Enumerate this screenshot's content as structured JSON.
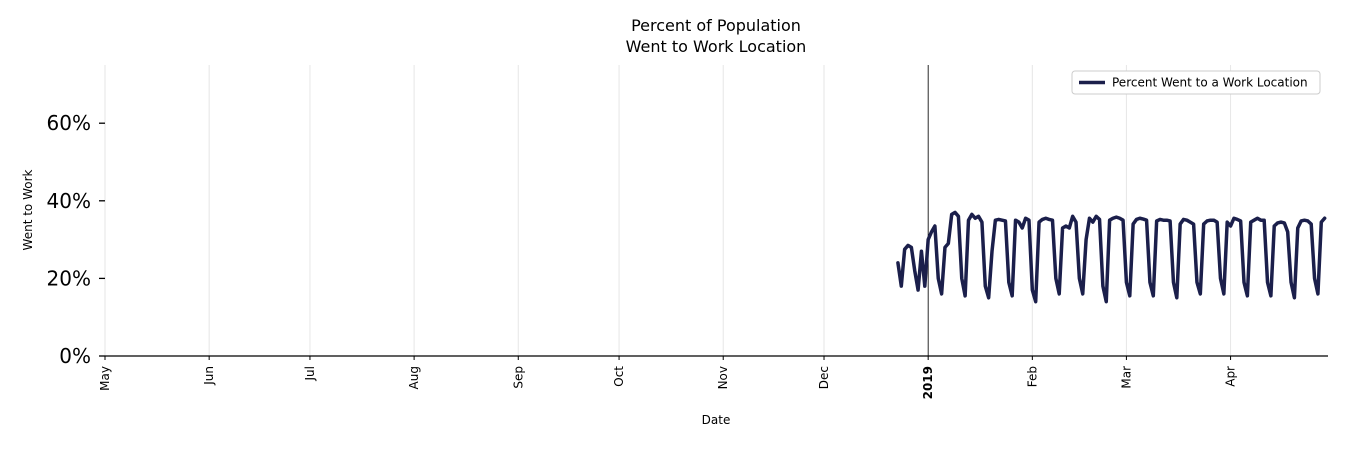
{
  "chart_data": {
    "type": "line",
    "title_lines": [
      "Percent of Population",
      "Went to Work Location"
    ],
    "xlabel": "Date",
    "ylabel": "Went to Work",
    "xlim": [
      "2018-05-01",
      "2019-04-30"
    ],
    "ylim": [
      0,
      0.75
    ],
    "y_ticks": [
      0,
      0.2,
      0.4,
      0.6
    ],
    "y_tick_labels": [
      "0%",
      "20%",
      "40%",
      "60%"
    ],
    "x_ticks": [
      {
        "date": "2018-05-01",
        "label": "May",
        "bold": false
      },
      {
        "date": "2018-06-01",
        "label": "Jun",
        "bold": false
      },
      {
        "date": "2018-07-01",
        "label": "Jul",
        "bold": false
      },
      {
        "date": "2018-08-01",
        "label": "Aug",
        "bold": false
      },
      {
        "date": "2018-09-01",
        "label": "Sep",
        "bold": false
      },
      {
        "date": "2018-10-01",
        "label": "Oct",
        "bold": false
      },
      {
        "date": "2018-11-01",
        "label": "Nov",
        "bold": false
      },
      {
        "date": "2018-12-01",
        "label": "Dec",
        "bold": false
      },
      {
        "date": "2019-01-01",
        "label": "2019",
        "bold": true
      },
      {
        "date": "2019-02-01",
        "label": "Feb",
        "bold": false
      },
      {
        "date": "2019-03-01",
        "label": "Mar",
        "bold": false
      },
      {
        "date": "2019-04-01",
        "label": "Apr",
        "bold": false
      }
    ],
    "vertical_marker": "2019-01-01",
    "grid": "vertical",
    "legend_position": "top-right",
    "colors": {
      "series": "#1b1f4b",
      "grid": "#e6e6e6",
      "axis": "#000000"
    },
    "series": [
      {
        "name": "Percent Went to a Work Location",
        "points": [
          [
            "2018-12-23",
            0.24
          ],
          [
            "2018-12-24",
            0.18
          ],
          [
            "2018-12-25",
            0.275
          ],
          [
            "2018-12-26",
            0.285
          ],
          [
            "2018-12-27",
            0.28
          ],
          [
            "2018-12-28",
            0.22
          ],
          [
            "2018-12-29",
            0.17
          ],
          [
            "2018-12-30",
            0.27
          ],
          [
            "2018-12-31",
            0.18
          ],
          [
            "2019-01-01",
            0.3
          ],
          [
            "2019-01-02",
            0.32
          ],
          [
            "2019-01-03",
            0.335
          ],
          [
            "2019-01-04",
            0.2
          ],
          [
            "2019-01-05",
            0.16
          ],
          [
            "2019-01-06",
            0.28
          ],
          [
            "2019-01-07",
            0.29
          ],
          [
            "2019-01-08",
            0.365
          ],
          [
            "2019-01-09",
            0.37
          ],
          [
            "2019-01-10",
            0.36
          ],
          [
            "2019-01-11",
            0.2
          ],
          [
            "2019-01-12",
            0.155
          ],
          [
            "2019-01-13",
            0.35
          ],
          [
            "2019-01-14",
            0.365
          ],
          [
            "2019-01-15",
            0.355
          ],
          [
            "2019-01-16",
            0.36
          ],
          [
            "2019-01-17",
            0.345
          ],
          [
            "2019-01-18",
            0.18
          ],
          [
            "2019-01-19",
            0.15
          ],
          [
            "2019-01-20",
            0.27
          ],
          [
            "2019-01-21",
            0.35
          ],
          [
            "2019-01-22",
            0.352
          ],
          [
            "2019-01-23",
            0.35
          ],
          [
            "2019-01-24",
            0.348
          ],
          [
            "2019-01-25",
            0.19
          ],
          [
            "2019-01-26",
            0.155
          ],
          [
            "2019-01-27",
            0.35
          ],
          [
            "2019-01-28",
            0.345
          ],
          [
            "2019-01-29",
            0.33
          ],
          [
            "2019-01-30",
            0.355
          ],
          [
            "2019-01-31",
            0.35
          ],
          [
            "2019-02-01",
            0.17
          ],
          [
            "2019-02-02",
            0.14
          ],
          [
            "2019-02-03",
            0.345
          ],
          [
            "2019-02-04",
            0.352
          ],
          [
            "2019-02-05",
            0.355
          ],
          [
            "2019-02-06",
            0.352
          ],
          [
            "2019-02-07",
            0.35
          ],
          [
            "2019-02-08",
            0.2
          ],
          [
            "2019-02-09",
            0.16
          ],
          [
            "2019-02-10",
            0.33
          ],
          [
            "2019-02-11",
            0.335
          ],
          [
            "2019-02-12",
            0.33
          ],
          [
            "2019-02-13",
            0.36
          ],
          [
            "2019-02-14",
            0.345
          ],
          [
            "2019-02-15",
            0.2
          ],
          [
            "2019-02-16",
            0.16
          ],
          [
            "2019-02-17",
            0.3
          ],
          [
            "2019-02-18",
            0.355
          ],
          [
            "2019-02-19",
            0.345
          ],
          [
            "2019-02-20",
            0.36
          ],
          [
            "2019-02-21",
            0.352
          ],
          [
            "2019-02-22",
            0.18
          ],
          [
            "2019-02-23",
            0.14
          ],
          [
            "2019-02-24",
            0.35
          ],
          [
            "2019-02-25",
            0.355
          ],
          [
            "2019-02-26",
            0.358
          ],
          [
            "2019-02-27",
            0.355
          ],
          [
            "2019-02-28",
            0.35
          ],
          [
            "2019-03-01",
            0.19
          ],
          [
            "2019-03-02",
            0.155
          ],
          [
            "2019-03-03",
            0.34
          ],
          [
            "2019-03-04",
            0.352
          ],
          [
            "2019-03-05",
            0.355
          ],
          [
            "2019-03-06",
            0.353
          ],
          [
            "2019-03-07",
            0.35
          ],
          [
            "2019-03-08",
            0.19
          ],
          [
            "2019-03-09",
            0.155
          ],
          [
            "2019-03-10",
            0.348
          ],
          [
            "2019-03-11",
            0.352
          ],
          [
            "2019-03-12",
            0.35
          ],
          [
            "2019-03-13",
            0.35
          ],
          [
            "2019-03-14",
            0.348
          ],
          [
            "2019-03-15",
            0.19
          ],
          [
            "2019-03-16",
            0.15
          ],
          [
            "2019-03-17",
            0.34
          ],
          [
            "2019-03-18",
            0.352
          ],
          [
            "2019-03-19",
            0.35
          ],
          [
            "2019-03-20",
            0.345
          ],
          [
            "2019-03-21",
            0.34
          ],
          [
            "2019-03-22",
            0.19
          ],
          [
            "2019-03-23",
            0.16
          ],
          [
            "2019-03-24",
            0.34
          ],
          [
            "2019-03-25",
            0.348
          ],
          [
            "2019-03-26",
            0.35
          ],
          [
            "2019-03-27",
            0.35
          ],
          [
            "2019-03-28",
            0.345
          ],
          [
            "2019-03-29",
            0.2
          ],
          [
            "2019-03-30",
            0.16
          ],
          [
            "2019-03-31",
            0.345
          ],
          [
            "2019-04-01",
            0.335
          ],
          [
            "2019-04-02",
            0.355
          ],
          [
            "2019-04-03",
            0.352
          ],
          [
            "2019-04-04",
            0.348
          ],
          [
            "2019-04-05",
            0.19
          ],
          [
            "2019-04-06",
            0.155
          ],
          [
            "2019-04-07",
            0.345
          ],
          [
            "2019-04-08",
            0.35
          ],
          [
            "2019-04-09",
            0.355
          ],
          [
            "2019-04-10",
            0.35
          ],
          [
            "2019-04-11",
            0.35
          ],
          [
            "2019-04-12",
            0.19
          ],
          [
            "2019-04-13",
            0.155
          ],
          [
            "2019-04-14",
            0.335
          ],
          [
            "2019-04-15",
            0.343
          ],
          [
            "2019-04-16",
            0.345
          ],
          [
            "2019-04-17",
            0.343
          ],
          [
            "2019-04-18",
            0.32
          ],
          [
            "2019-04-19",
            0.19
          ],
          [
            "2019-04-20",
            0.15
          ],
          [
            "2019-04-21",
            0.33
          ],
          [
            "2019-04-22",
            0.348
          ],
          [
            "2019-04-23",
            0.35
          ],
          [
            "2019-04-24",
            0.348
          ],
          [
            "2019-04-25",
            0.34
          ],
          [
            "2019-04-26",
            0.2
          ],
          [
            "2019-04-27",
            0.16
          ],
          [
            "2019-04-28",
            0.345
          ],
          [
            "2019-04-29",
            0.355
          ]
        ]
      }
    ]
  }
}
